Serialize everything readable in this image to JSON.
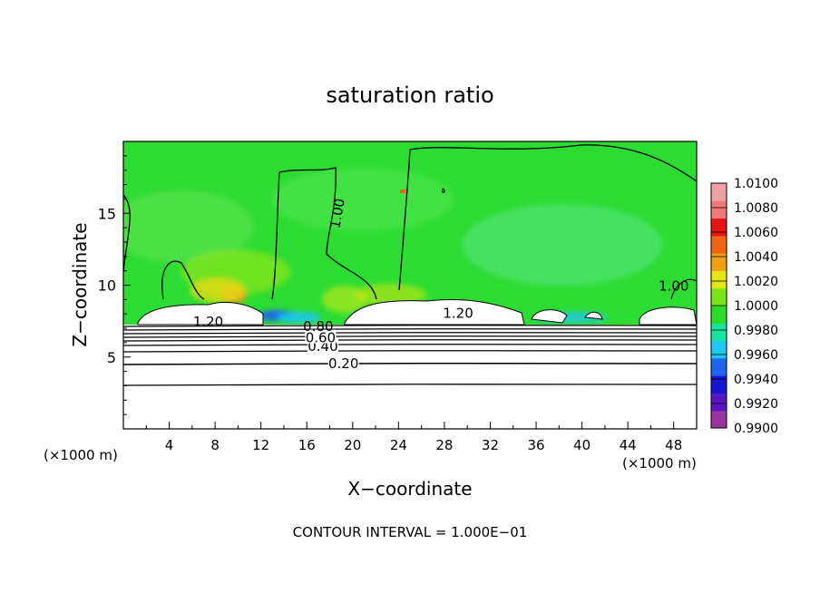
{
  "chart_data": {
    "type": "heatmap",
    "title": "saturation ratio",
    "xlabel": "X−coordinate",
    "ylabel": "Z−coordinate",
    "x_unit_left": "(×1000 m)",
    "x_unit_right": "(×1000 m)",
    "xlim": [
      0,
      50
    ],
    "ylim": [
      0,
      20
    ],
    "xticks": [
      4,
      8,
      12,
      16,
      20,
      24,
      28,
      32,
      36,
      40,
      44,
      48
    ],
    "yticks": [
      5,
      10,
      15
    ],
    "footer": "CONTOUR INTERVAL =  1.000E−01",
    "colorbar": {
      "min": 0.99,
      "max": 1.01,
      "labels": [
        "1.0100",
        "1.0080",
        "1.0060",
        "1.0040",
        "1.0020",
        "1.0000",
        "0.9980",
        "0.9960",
        "0.9940",
        "0.9920",
        "0.9900"
      ],
      "colors": [
        "#9b32a0",
        "#5a14c8",
        "#1414d2",
        "#1e64f0",
        "#1ec8f0",
        "#14e6a0",
        "#28dc28",
        "#78e614",
        "#e6e614",
        "#f0a014",
        "#f06414",
        "#e61414",
        "#f07878",
        "#f0a0a0"
      ]
    },
    "contour_labels": [
      {
        "text": "0.20",
        "x": 19.2,
        "z": 4.6
      },
      {
        "text": "0.40",
        "x": 17.4,
        "z": 5.8
      },
      {
        "text": "0.60",
        "x": 17.2,
        "z": 6.4
      },
      {
        "text": "0.80",
        "x": 17.0,
        "z": 7.2
      },
      {
        "text": "1.00",
        "x": 18.6,
        "z": 15.0
      },
      {
        "text": "1.20",
        "x": 7.4,
        "z": 7.5
      },
      {
        "text": "1.20",
        "x": 29.2,
        "z": 8.1
      },
      {
        "text": "1.00",
        "x": 48.0,
        "z": 10.0
      }
    ]
  }
}
